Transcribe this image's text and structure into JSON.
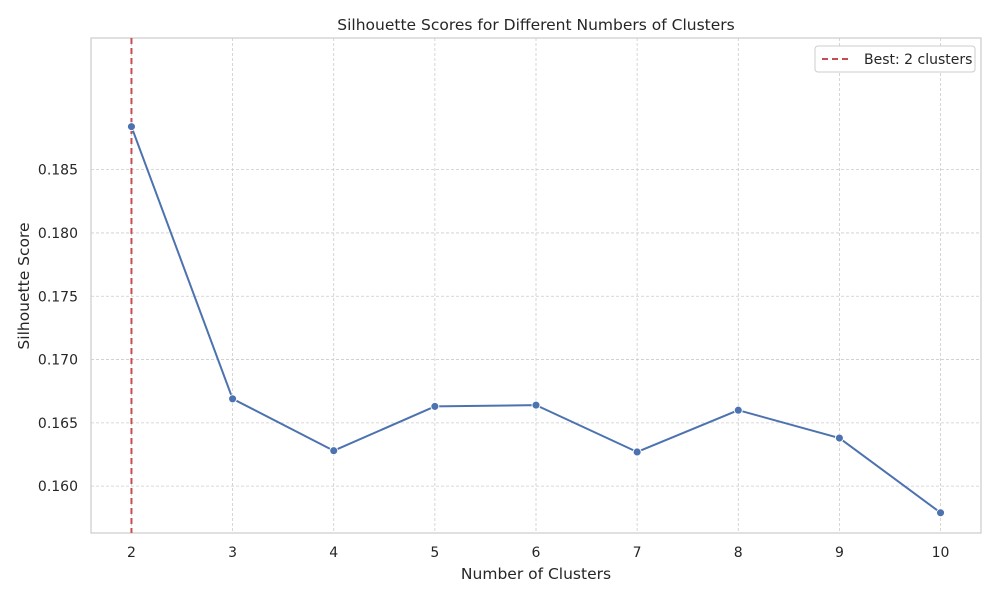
{
  "chart_data": {
    "type": "line",
    "title": "Silhouette Scores for Different Numbers of Clusters",
    "xlabel": "Number of Clusters",
    "ylabel": "Silhouette Score",
    "x": [
      2,
      3,
      4,
      5,
      6,
      7,
      8,
      9,
      10
    ],
    "x_tick_labels": [
      "2",
      "3",
      "4",
      "5",
      "6",
      "7",
      "8",
      "9",
      "10"
    ],
    "y_tick_values": [
      0.16,
      0.165,
      0.17,
      0.175,
      0.18,
      0.185
    ],
    "y_tick_labels": [
      "0.160",
      "0.165",
      "0.170",
      "0.175",
      "0.180",
      "0.185"
    ],
    "xlim": [
      1.6,
      10.4
    ],
    "ylim": [
      0.1563,
      0.1954
    ],
    "grid": true,
    "series": [
      {
        "values": [
          0.1884,
          0.1669,
          0.1628,
          0.1663,
          0.1664,
          0.1627,
          0.166,
          0.1638,
          0.1579
        ],
        "color": "#4c72b0",
        "marker": "circle"
      }
    ],
    "reference_line": {
      "orientation": "vertical",
      "x": 2,
      "style": "dashed",
      "color": "#c44e52",
      "label": "Best: 2 clusters"
    },
    "legend": {
      "placement": "top-right",
      "entries": [
        "Best: 2 clusters"
      ]
    }
  }
}
